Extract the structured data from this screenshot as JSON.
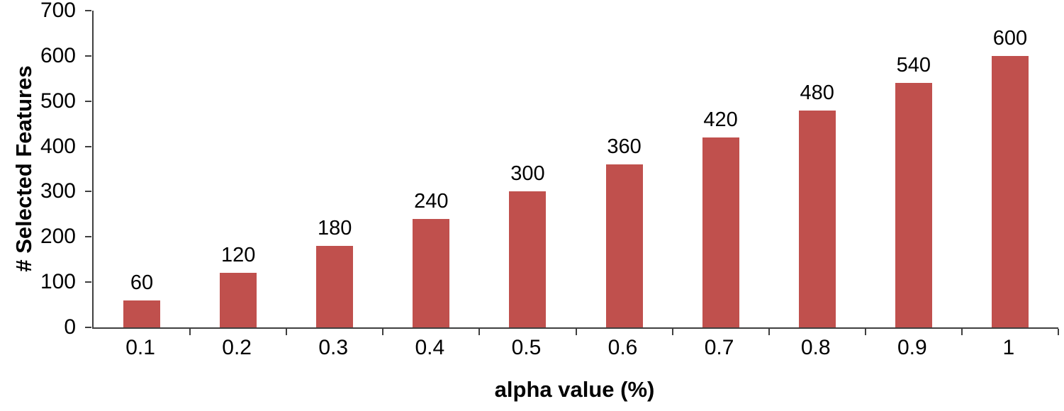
{
  "chart_data": {
    "type": "bar",
    "categories": [
      "0.1",
      "0.2",
      "0.3",
      "0.4",
      "0.5",
      "0.6",
      "0.7",
      "0.8",
      "0.9",
      "1"
    ],
    "values": [
      60,
      120,
      180,
      240,
      300,
      360,
      420,
      480,
      540,
      600
    ],
    "title": "",
    "xlabel": "alpha value (%)",
    "ylabel": "# Selected Features",
    "ylim": [
      0,
      700
    ],
    "ytick_step": 100,
    "yticks": [
      0,
      100,
      200,
      300,
      400,
      500,
      600,
      700
    ],
    "bar_color": "#c0504d",
    "axis_color": "#3f3f3f",
    "text_color": "#000000",
    "grid": false,
    "legend": "none",
    "data_labels": true
  }
}
